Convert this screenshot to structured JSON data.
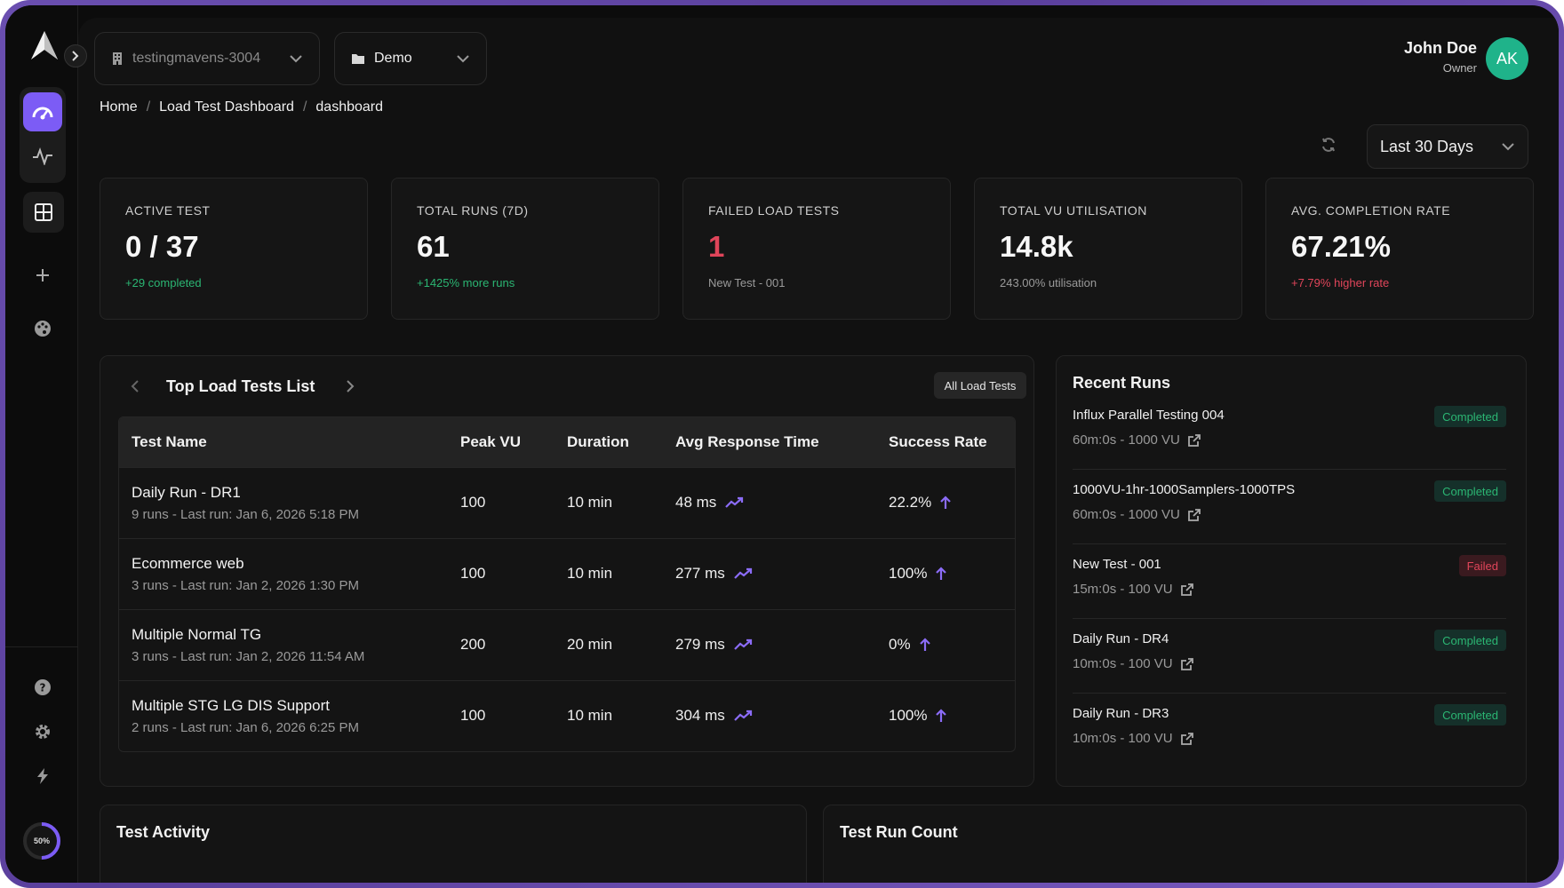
{
  "header": {
    "workspace": "testingmavens-3004",
    "project": "Demo",
    "user_name": "John Doe",
    "user_role": "Owner",
    "avatar_initials": "AK"
  },
  "breadcrumb": [
    "Home",
    "Load Test Dashboard",
    "dashboard"
  ],
  "range": "Last 30 Days",
  "stats": [
    {
      "label": "ACTIVE TEST",
      "value": "0 / 37",
      "sub": "+29 completed",
      "tone": "green"
    },
    {
      "label": "TOTAL RUNS (7D)",
      "value": "61",
      "sub": "+1425% more runs",
      "tone": "green"
    },
    {
      "label": "FAILED LOAD TESTS",
      "value": "1",
      "sub": "New Test - 001",
      "tone": "muted"
    },
    {
      "label": "TOTAL VU UTILISATION",
      "value": "14.8k",
      "sub": "243.00% utilisation",
      "tone": "muted"
    },
    {
      "label": "AVG. COMPLETION RATE",
      "value": "67.21%",
      "sub": "+7.79% higher rate",
      "tone": "red"
    }
  ],
  "top_tests": {
    "title": "Top Load Tests List",
    "all_button": "All Load Tests",
    "columns": [
      "Test Name",
      "Peak VU",
      "Duration",
      "Avg Response Time",
      "Success Rate"
    ],
    "rows": [
      {
        "name": "Daily Run - DR1",
        "meta": "9 runs - Last run: Jan 6, 2026 5:18 PM",
        "peak": "100",
        "duration": "10 min",
        "avg": "48 ms",
        "success": "22.2%"
      },
      {
        "name": "Ecommerce web",
        "meta": "3 runs - Last run: Jan 2, 2026 1:30 PM",
        "peak": "100",
        "duration": "10 min",
        "avg": "277 ms",
        "success": "100%"
      },
      {
        "name": "Multiple Normal TG",
        "meta": "3 runs - Last run: Jan 2, 2026 11:54 AM",
        "peak": "200",
        "duration": "20 min",
        "avg": "279 ms",
        "success": "0%"
      },
      {
        "name": "Multiple STG LG DIS Support",
        "meta": "2 runs - Last run: Jan 6, 2026 6:25 PM",
        "peak": "100",
        "duration": "10 min",
        "avg": "304 ms",
        "success": "100%"
      }
    ]
  },
  "recent_runs": {
    "title": "Recent Runs",
    "items": [
      {
        "name": "Influx Parallel Testing 004",
        "meta": "60m:0s - 1000 VU",
        "status": "Completed"
      },
      {
        "name": "1000VU-1hr-1000Samplers-1000TPS",
        "meta": "60m:0s - 1000 VU",
        "status": "Completed"
      },
      {
        "name": "New Test - 001",
        "meta": "15m:0s - 100 VU",
        "status": "Failed"
      },
      {
        "name": "Daily Run - DR4",
        "meta": "10m:0s - 100 VU",
        "status": "Completed"
      },
      {
        "name": "Daily Run - DR3",
        "meta": "10m:0s - 100 VU",
        "status": "Completed"
      }
    ]
  },
  "bottom": {
    "activity_title": "Test Activity",
    "count_title": "Test Run Count"
  },
  "sidebar": {
    "usage_percent": 50,
    "usage_label": "50%"
  },
  "colors": {
    "accent": "#7c5cf5",
    "success": "#2bb673",
    "danger": "#e0455a",
    "avatar": "#1fb38a"
  },
  "icons": [
    "logo-icon",
    "chevron-right-icon",
    "gauge-icon",
    "pulse-icon",
    "grid-icon",
    "plus-icon",
    "palette-icon",
    "help-icon",
    "gear-icon",
    "bolt-icon",
    "building-icon",
    "folder-icon",
    "chevron-down-icon",
    "refresh-icon",
    "chevron-left-icon",
    "trend-up-icon",
    "arrow-up-icon",
    "external-link-icon"
  ]
}
